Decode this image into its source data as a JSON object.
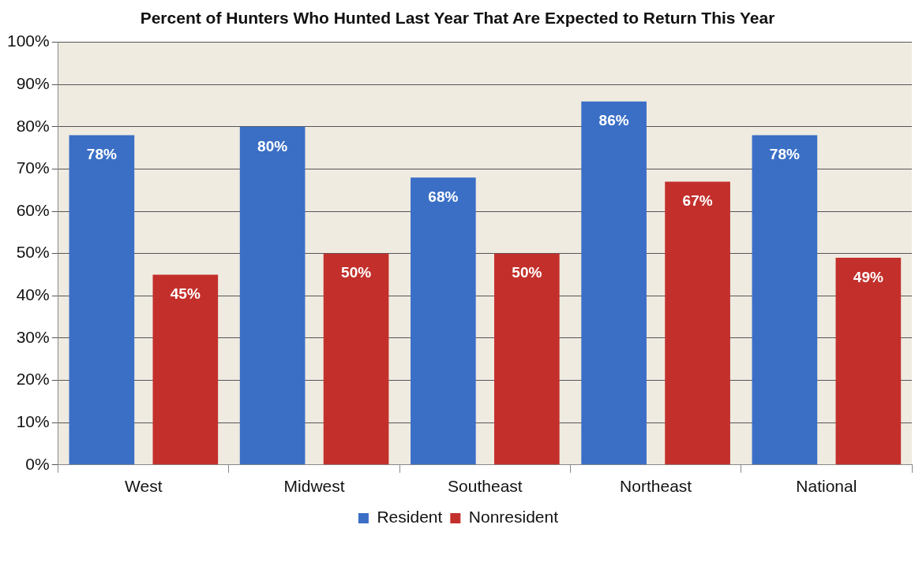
{
  "chart_data": {
    "type": "bar",
    "title": "Percent of Hunters Who Hunted Last Year That Are Expected to Return This Year",
    "categories": [
      "West",
      "Midwest",
      "Southeast",
      "Northeast",
      "National"
    ],
    "series": [
      {
        "name": "Resident",
        "color": "#3b6fc6",
        "values": [
          78,
          80,
          68,
          86,
          78
        ],
        "value_labels": [
          "78%",
          "80%",
          "68%",
          "86%",
          "78%"
        ]
      },
      {
        "name": "Nonresident",
        "color": "#c3302c",
        "values": [
          45,
          50,
          50,
          67,
          49
        ],
        "value_labels": [
          "45%",
          "50%",
          "50%",
          "67%",
          "49%"
        ]
      }
    ],
    "ylim": [
      0,
      100
    ],
    "yticks": [
      {
        "value": 0,
        "label": "0%"
      },
      {
        "value": 10,
        "label": "10%"
      },
      {
        "value": 20,
        "label": "20%"
      },
      {
        "value": 30,
        "label": "30%"
      },
      {
        "value": 40,
        "label": "40%"
      },
      {
        "value": 50,
        "label": "50%"
      },
      {
        "value": 60,
        "label": "60%"
      },
      {
        "value": 70,
        "label": "70%"
      },
      {
        "value": 80,
        "label": "80%"
      },
      {
        "value": 90,
        "label": "90%"
      },
      {
        "value": 100,
        "label": "100%"
      }
    ],
    "grid": "y",
    "legend": "bottom"
  }
}
